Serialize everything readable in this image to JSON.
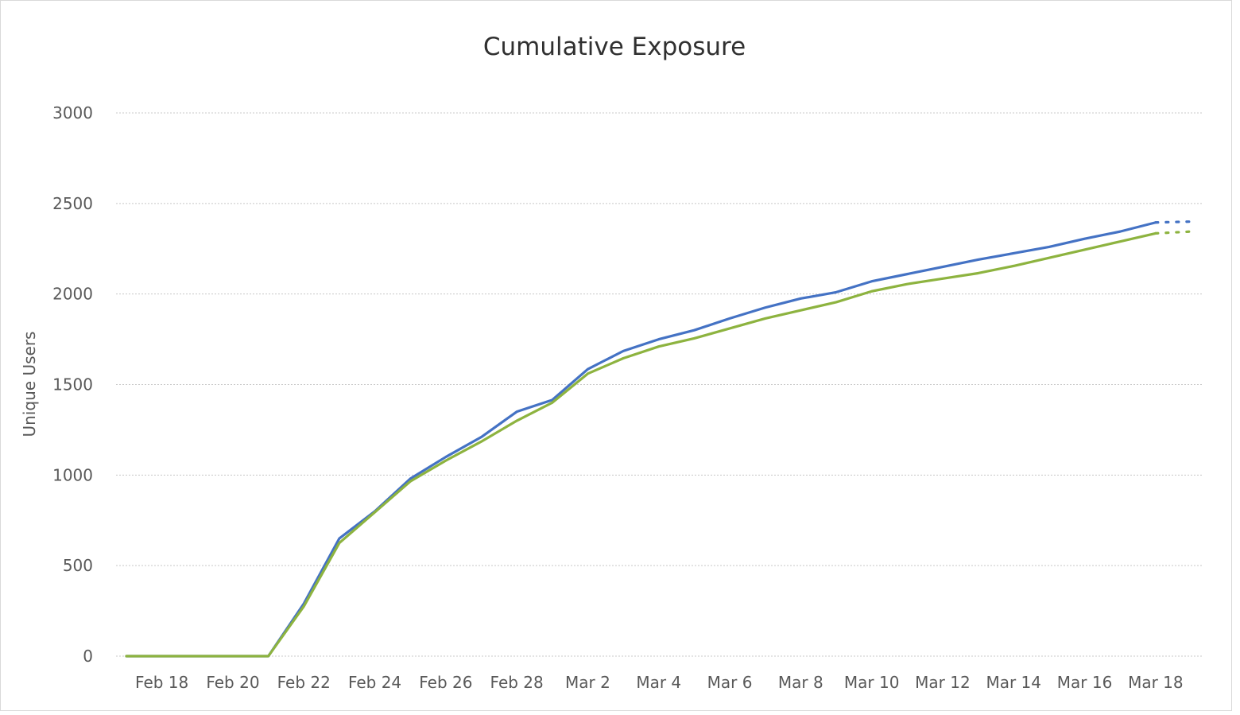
{
  "chart_data": {
    "type": "line",
    "title": "Cumulative Exposure",
    "xlabel": "",
    "ylabel": "Unique Users",
    "ylim": [
      0,
      3000
    ],
    "yticks": [
      "0",
      "500",
      "1000",
      "1500",
      "2000",
      "2500",
      "3000"
    ],
    "x": [
      "Feb 17",
      "Feb 18",
      "Feb 19",
      "Feb 20",
      "Feb 21",
      "Feb 22",
      "Feb 23",
      "Feb 24",
      "Feb 25",
      "Feb 26",
      "Feb 27",
      "Feb 28",
      "Mar 1",
      "Mar 2",
      "Mar 3",
      "Mar 4",
      "Mar 5",
      "Mar 6",
      "Mar 7",
      "Mar 8",
      "Mar 9",
      "Mar 10",
      "Mar 11",
      "Mar 12",
      "Mar 13",
      "Mar 14",
      "Mar 15",
      "Mar 16",
      "Mar 17",
      "Mar 18"
    ],
    "xtick_labels": [
      "Feb 18",
      "Feb 20",
      "Feb 22",
      "Feb 24",
      "Feb 26",
      "Feb 28",
      "Mar 2",
      "Mar 4",
      "Mar 6",
      "Mar 8",
      "Mar 10",
      "Mar 12",
      "Mar 14",
      "Mar 16",
      "Mar 18"
    ],
    "series": [
      {
        "color": "#4472c4",
        "values": [
          0,
          0,
          0,
          0,
          0,
          290,
          650,
          800,
          980,
          1100,
          1210,
          1350,
          1415,
          1585,
          1685,
          1750,
          1800,
          1865,
          1925,
          1975,
          2010,
          2070,
          2110,
          2150,
          2190,
          2225,
          2260,
          2305,
          2345,
          2395
        ],
        "projection": [
          2395,
          2400
        ]
      },
      {
        "color": "#8db33f",
        "values": [
          0,
          0,
          0,
          0,
          0,
          275,
          625,
          795,
          965,
          1080,
          1185,
          1300,
          1400,
          1560,
          1645,
          1710,
          1755,
          1810,
          1865,
          1910,
          1955,
          2015,
          2055,
          2085,
          2115,
          2155,
          2200,
          2245,
          2290,
          2335
        ],
        "projection": [
          2335,
          2345
        ]
      }
    ],
    "grid": true,
    "legend": "none"
  }
}
